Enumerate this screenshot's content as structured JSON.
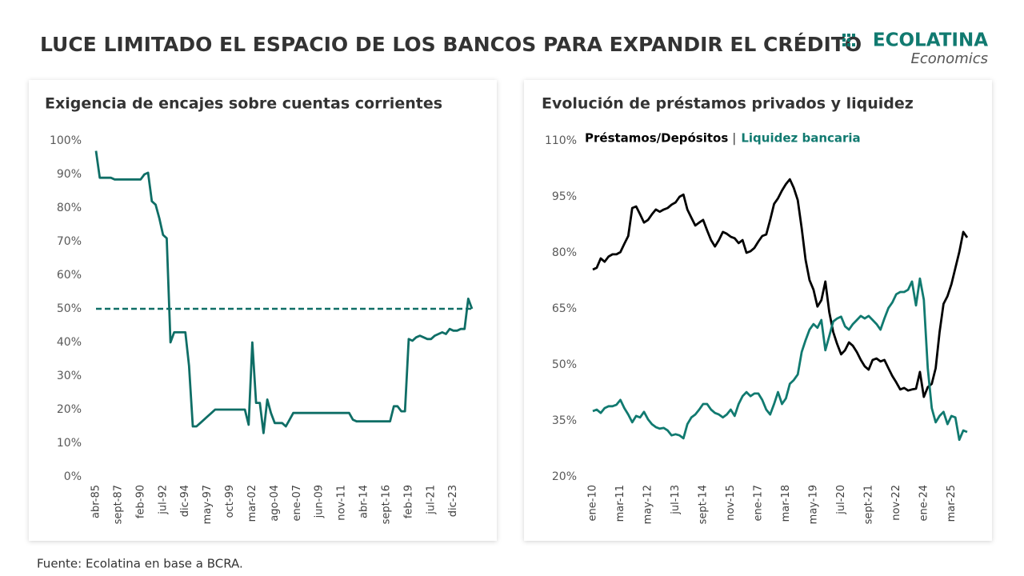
{
  "header": {
    "title": "LUCE LIMITADO EL ESPACIO DE LOS BANCOS PARA EXPANDIR EL CRÉDITO",
    "logo": {
      "name": "ECOLATINA",
      "tagline": "Economics"
    }
  },
  "footer": {
    "source": "Fuente: Ecolatina en base a BCRA."
  },
  "chart_data": [
    {
      "type": "line",
      "title": "Exigencia de encajes sobre cuentas corrientes",
      "color": "#0f6e66",
      "categories": [
        "abr-85",
        null,
        null,
        null,
        null,
        null,
        "sept-87",
        null,
        null,
        null,
        null,
        null,
        "feb-90",
        null,
        null,
        null,
        null,
        null,
        "jul-92",
        null,
        null,
        null,
        null,
        null,
        "dic-94",
        null,
        null,
        null,
        null,
        null,
        "may-97",
        null,
        null,
        null,
        null,
        null,
        "oct-99",
        null,
        null,
        null,
        null,
        null,
        "mar-02",
        null,
        null,
        null,
        null,
        null,
        "ago-04",
        null,
        null,
        null,
        null,
        null,
        "ene-07",
        null,
        null,
        null,
        null,
        null,
        "jun-09",
        null,
        null,
        null,
        null,
        null,
        "nov-11",
        null,
        null,
        null,
        null,
        null,
        "abr-14",
        null,
        null,
        null,
        null,
        null,
        "sept-16",
        null,
        null,
        null,
        null,
        null,
        "feb-19",
        null,
        null,
        null,
        null,
        null,
        "jul-21",
        null,
        null,
        null,
        null,
        null,
        "dic-23",
        null,
        null,
        null,
        null,
        null
      ],
      "values": [
        97,
        89,
        89,
        89,
        89,
        88.5,
        88.5,
        88.5,
        88.5,
        88.5,
        88.5,
        88.5,
        88.5,
        90,
        90.5,
        82,
        81,
        77,
        72,
        71,
        40,
        43,
        43,
        43,
        43,
        33,
        15,
        15,
        16,
        17,
        18,
        19,
        20,
        20,
        20,
        20,
        20,
        20,
        20,
        20,
        20,
        15.5,
        40,
        22,
        22,
        13,
        23,
        19,
        16,
        16,
        16,
        15,
        17,
        19,
        19,
        19,
        19,
        19,
        19,
        19,
        19,
        19,
        19,
        19,
        19,
        19,
        19,
        19,
        19,
        17,
        16.5,
        16.5,
        16.5,
        16.5,
        16.5,
        16.5,
        16.5,
        16.5,
        16.5,
        16.5,
        21,
        21,
        19.5,
        19.5,
        41,
        40.5,
        41.5,
        42,
        41.5,
        41,
        41,
        42,
        42.5,
        43,
        42.5,
        44,
        43.5,
        43.5,
        44,
        44,
        53,
        50
      ],
      "reference_value": 50,
      "ylim": [
        0,
        100
      ],
      "yticks": [
        {
          "value": 0,
          "label": "0%"
        },
        {
          "value": 10,
          "label": "10%"
        },
        {
          "value": 20,
          "label": "20%"
        },
        {
          "value": 30,
          "label": "30%"
        },
        {
          "value": 40,
          "label": "40%"
        },
        {
          "value": 50,
          "label": "50%"
        },
        {
          "value": 60,
          "label": "60%"
        },
        {
          "value": 70,
          "label": "70%"
        },
        {
          "value": 80,
          "label": "80%"
        },
        {
          "value": 90,
          "label": "90%"
        },
        {
          "value": 100,
          "label": "100%"
        }
      ],
      "grid": false
    },
    {
      "type": "line",
      "title": "Evolución de préstamos privados y liquidez",
      "legend_separator": "|",
      "categories": [
        "ene-10",
        null,
        null,
        null,
        null,
        null,
        null,
        "mar-11",
        null,
        null,
        null,
        null,
        null,
        null,
        "may-12",
        null,
        null,
        null,
        null,
        null,
        null,
        "jul-13",
        null,
        null,
        null,
        null,
        null,
        null,
        "sept-14",
        null,
        null,
        null,
        null,
        null,
        null,
        "nov-15",
        null,
        null,
        null,
        null,
        null,
        null,
        "ene-17",
        null,
        null,
        null,
        null,
        null,
        null,
        "mar-18",
        null,
        null,
        null,
        null,
        null,
        null,
        "may-19",
        null,
        null,
        null,
        null,
        null,
        null,
        "jul-20",
        null,
        null,
        null,
        null,
        null,
        null,
        "sept-21",
        null,
        null,
        null,
        null,
        null,
        null,
        "nov-22",
        null,
        null,
        null,
        null,
        null,
        null,
        "ene-24",
        null,
        null,
        null,
        null,
        null,
        null,
        "mar-25",
        null,
        null,
        null,
        null
      ],
      "series": [
        {
          "name": "Préstamos/Depósitos",
          "color": "#000000",
          "values": [
            75.5,
            76,
            78.5,
            77.6,
            79,
            79.6,
            79.6,
            80.2,
            82.4,
            84.5,
            92,
            92.4,
            90.3,
            88.1,
            88.8,
            90.3,
            91.6,
            91,
            91.6,
            92,
            92.9,
            93.5,
            95,
            95.6,
            91.6,
            89.4,
            87.3,
            88.1,
            88.8,
            86,
            83.4,
            81.7,
            83.4,
            85.6,
            85.1,
            84.3,
            83.9,
            82.6,
            83.4,
            80,
            80.4,
            81.3,
            83,
            84.5,
            84.9,
            88.8,
            93.1,
            94.6,
            96.7,
            98.4,
            99.7,
            97.4,
            94.1,
            86.6,
            78.1,
            72.7,
            70.1,
            65.6,
            67.3,
            72.3,
            64.1,
            58.8,
            55.6,
            52.8,
            53.9,
            56,
            55.1,
            53.4,
            51.3,
            49.6,
            48.7,
            51.3,
            51.7,
            50.9,
            51.3,
            49.1,
            47,
            45.3,
            43.4,
            43.8,
            43.1,
            43.4,
            43.6,
            48.1,
            41.4,
            44,
            44.9,
            49.1,
            58.8,
            66.3,
            68.4,
            71.6,
            75.9,
            80.2,
            85.6,
            84.1
          ]
        },
        {
          "name": "Liquidez bancaria",
          "color": "#117a70",
          "values": [
            37.6,
            38,
            37.1,
            38.4,
            38.9,
            38.9,
            39.3,
            40.6,
            38.4,
            36.7,
            34.6,
            36.3,
            35.9,
            37.4,
            35.4,
            34.1,
            33.3,
            32.9,
            33.1,
            32.4,
            31.1,
            31.4,
            31.1,
            30.3,
            34.1,
            35.9,
            36.7,
            38,
            39.5,
            39.5,
            38,
            37.1,
            36.7,
            35.9,
            36.7,
            38,
            36.3,
            39.5,
            41.6,
            42.7,
            41.6,
            42.3,
            42.3,
            40.6,
            38,
            36.7,
            39.5,
            42.7,
            39.5,
            41,
            44.9,
            45.9,
            47.4,
            53.4,
            56.6,
            59.4,
            60.9,
            59.9,
            62,
            53.9,
            57.7,
            61.6,
            62.4,
            62.9,
            60.3,
            59.4,
            60.9,
            62,
            63.1,
            62.4,
            63.1,
            62,
            60.9,
            59.4,
            62.4,
            65.2,
            66.7,
            68.9,
            69.5,
            69.5,
            70.1,
            72.3,
            65.9,
            73.1,
            67.4,
            49.1,
            38.4,
            34.6,
            36.3,
            37.4,
            34.1,
            36.3,
            35.9,
            29.9,
            32.4,
            32
          ]
        }
      ],
      "ylim": [
        20,
        110
      ],
      "yticks": [
        {
          "value": 20,
          "label": "20%"
        },
        {
          "value": 35,
          "label": "35%"
        },
        {
          "value": 50,
          "label": "50%"
        },
        {
          "value": 65,
          "label": "65%"
        },
        {
          "value": 80,
          "label": "80%"
        },
        {
          "value": 95,
          "label": "95%"
        },
        {
          "value": 110,
          "label": "110%"
        }
      ],
      "grid": false
    }
  ]
}
